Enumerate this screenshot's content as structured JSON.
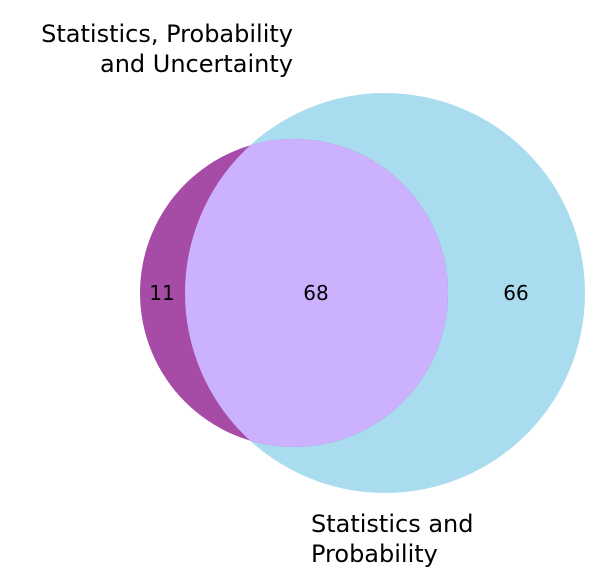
{
  "sets": {
    "a": {
      "label_lines": [
        "Statistics, Probability",
        "and Uncertainty"
      ],
      "color": "#a64ca6"
    },
    "b": {
      "label_lines": [
        "Statistics and",
        "Probability"
      ],
      "color": "#a9dcee"
    },
    "overlap_color": "#ccb1ff"
  },
  "regions": {
    "a_only": "11",
    "both": "68",
    "b_only": "66"
  }
}
